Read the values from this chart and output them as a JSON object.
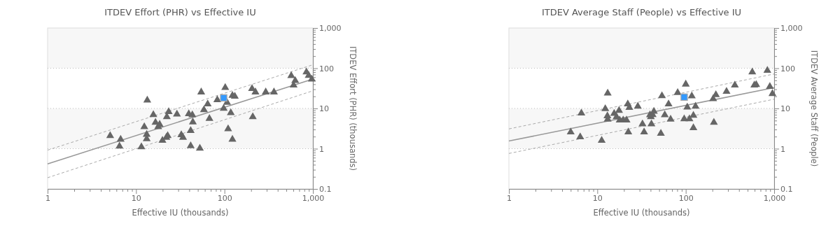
{
  "chart_data": [
    {
      "type": "scatter",
      "title": "ITDEV Effort (PHR) vs Effective IU",
      "xlabel": "Effective IU (thousands)",
      "ylabel": "ITDEV Effort (PHR) (thousands)",
      "log": "xy",
      "grid": "y",
      "xlim": [
        1,
        1000
      ],
      "ylim": [
        0.1,
        1000
      ],
      "xticks": [
        1,
        {
          "value": 2,
          "label": null
        },
        {
          "value": 3,
          "label": null
        },
        {
          "value": 4,
          "label": null
        },
        {
          "value": 5,
          "label": null
        },
        {
          "value": 6,
          "label": null
        },
        {
          "value": 7,
          "label": null
        },
        {
          "value": 8,
          "label": null
        },
        {
          "value": 9,
          "label": null
        },
        10,
        {
          "value": 20,
          "label": null
        },
        {
          "value": 30,
          "label": null
        },
        {
          "value": 40,
          "label": null
        },
        {
          "value": 50,
          "label": null
        },
        {
          "value": 60,
          "label": null
        },
        {
          "value": 70,
          "label": null
        },
        {
          "value": 80,
          "label": null
        },
        {
          "value": 90,
          "label": null
        },
        100,
        {
          "value": 200,
          "label": null
        },
        {
          "value": 300,
          "label": null
        },
        {
          "value": 400,
          "label": null
        },
        {
          "value": 500,
          "label": null
        },
        {
          "value": 600,
          "label": null
        },
        {
          "value": 700,
          "label": null
        },
        {
          "value": 800,
          "label": null
        },
        {
          "value": 900,
          "label": null
        },
        {
          "value": 1000,
          "label": "1,000"
        }
      ],
      "yticks": [
        0.1,
        {
          "value": 0.2,
          "label": null
        },
        {
          "value": 0.3,
          "label": null
        },
        {
          "value": 0.4,
          "label": null
        },
        {
          "value": 0.5,
          "label": null
        },
        {
          "value": 0.6,
          "label": null
        },
        {
          "value": 0.7,
          "label": null
        },
        {
          "value": 0.8,
          "label": null
        },
        {
          "value": 0.9,
          "label": null
        },
        1,
        {
          "value": 2,
          "label": null
        },
        {
          "value": 3,
          "label": null
        },
        {
          "value": 4,
          "label": null
        },
        {
          "value": 5,
          "label": null
        },
        {
          "value": 6,
          "label": null
        },
        {
          "value": 7,
          "label": null
        },
        {
          "value": 8,
          "label": null
        },
        {
          "value": 9,
          "label": null
        },
        10,
        {
          "value": 20,
          "label": null
        },
        {
          "value": 30,
          "label": null
        },
        {
          "value": 40,
          "label": null
        },
        {
          "value": 50,
          "label": null
        },
        {
          "value": 60,
          "label": null
        },
        {
          "value": 70,
          "label": null
        },
        {
          "value": 80,
          "label": null
        },
        {
          "value": 90,
          "label": null
        },
        100,
        {
          "value": 200,
          "label": null
        },
        {
          "value": 300,
          "label": null
        },
        {
          "value": 400,
          "label": null
        },
        {
          "value": 500,
          "label": null
        },
        {
          "value": 600,
          "label": null
        },
        {
          "value": 700,
          "label": null
        },
        {
          "value": 800,
          "label": null
        },
        {
          "value": 900,
          "label": null
        },
        {
          "value": 1000,
          "label": "1,000"
        }
      ],
      "bands": [
        {
          "axis": "y",
          "from": 100,
          "to": 1000,
          "color": "#f7f7f7"
        },
        {
          "axis": "y",
          "from": 1,
          "to": 10,
          "color": "#f7f7f7"
        }
      ],
      "series": [
        {
          "type": "line",
          "color": "#aaaaaa",
          "line_style": "dashed",
          "marker": "none",
          "x": [
            1,
            1000
          ],
          "values": [
            0.92,
            122
          ]
        },
        {
          "type": "line",
          "color": "#aaaaaa",
          "line_style": "dashed",
          "marker": "none",
          "x": [
            1,
            1000
          ],
          "values": [
            0.19,
            27.5
          ]
        },
        {
          "type": "line",
          "color": "#999999",
          "line_style": "solid",
          "marker": "none",
          "x": [
            1,
            1000
          ],
          "values": [
            0.42,
            54
          ]
        },
        {
          "type": "scatter",
          "color": "#666666",
          "marker": "triangle",
          "x": [
            5.1,
            6.7,
            6.5,
            11.5,
            13.4,
            12.4,
            13.2,
            13.2,
            15.7,
            16.6,
            17.8,
            18.5,
            19.9,
            22,
            22.8,
            22.3,
            23.4,
            29,
            32.5,
            34,
            39.5,
            41.5,
            41.5,
            43.3,
            43.9,
            52.7,
            54.6,
            58.6,
            64.6,
            67.6,
            83,
            98,
            102,
            107,
            110,
            118,
            123,
            131,
            123,
            205,
            224,
            209,
            293,
            363,
            569,
            631,
            605,
            845,
            896,
            972
          ],
          "values": [
            2.1,
            1.7,
            1.15,
            1.1,
            16,
            3.5,
            2.25,
            1.75,
            7,
            4.5,
            3.5,
            4,
            1.6,
            1.9,
            2.1,
            6.2,
            8.3,
            7.2,
            2.2,
            1.9,
            7.3,
            1.17,
            2.8,
            6.9,
            4.6,
            1.02,
            25.5,
            9.2,
            12.8,
            5.6,
            16.3,
            10,
            33,
            14,
            3.1,
            7.8,
            21,
            20,
            1.7,
            31,
            25.5,
            6.2,
            25.5,
            25.5,
            65,
            49,
            38,
            80,
            66,
            53
          ]
        },
        {
          "type": "scatter",
          "color": "#3399ff",
          "marker": "square",
          "x": [
            98
          ],
          "values": [
            18.3
          ]
        }
      ]
    },
    {
      "type": "scatter",
      "title": "ITDEV Average Staff (People) vs Effective IU",
      "xlabel": "Effective IU (thousands)",
      "ylabel": "ITDEV Average Staff (People)",
      "log": "xy",
      "grid": "y",
      "xlim": [
        1,
        1000
      ],
      "ylim": [
        0.1,
        1000
      ],
      "xticks": [
        1,
        {
          "value": 2,
          "label": null
        },
        {
          "value": 3,
          "label": null
        },
        {
          "value": 4,
          "label": null
        },
        {
          "value": 5,
          "label": null
        },
        {
          "value": 6,
          "label": null
        },
        {
          "value": 7,
          "label": null
        },
        {
          "value": 8,
          "label": null
        },
        {
          "value": 9,
          "label": null
        },
        10,
        {
          "value": 20,
          "label": null
        },
        {
          "value": 30,
          "label": null
        },
        {
          "value": 40,
          "label": null
        },
        {
          "value": 50,
          "label": null
        },
        {
          "value": 60,
          "label": null
        },
        {
          "value": 70,
          "label": null
        },
        {
          "value": 80,
          "label": null
        },
        {
          "value": 90,
          "label": null
        },
        100,
        {
          "value": 200,
          "label": null
        },
        {
          "value": 300,
          "label": null
        },
        {
          "value": 400,
          "label": null
        },
        {
          "value": 500,
          "label": null
        },
        {
          "value": 600,
          "label": null
        },
        {
          "value": 700,
          "label": null
        },
        {
          "value": 800,
          "label": null
        },
        {
          "value": 900,
          "label": null
        },
        {
          "value": 1000,
          "label": "1,000"
        }
      ],
      "yticks": [
        0.1,
        {
          "value": 0.2,
          "label": null
        },
        {
          "value": 0.3,
          "label": null
        },
        {
          "value": 0.4,
          "label": null
        },
        {
          "value": 0.5,
          "label": null
        },
        {
          "value": 0.6,
          "label": null
        },
        {
          "value": 0.7,
          "label": null
        },
        {
          "value": 0.8,
          "label": null
        },
        {
          "value": 0.9,
          "label": null
        },
        1,
        {
          "value": 2,
          "label": null
        },
        {
          "value": 3,
          "label": null
        },
        {
          "value": 4,
          "label": null
        },
        {
          "value": 5,
          "label": null
        },
        {
          "value": 6,
          "label": null
        },
        {
          "value": 7,
          "label": null
        },
        {
          "value": 8,
          "label": null
        },
        {
          "value": 9,
          "label": null
        },
        10,
        {
          "value": 20,
          "label": null
        },
        {
          "value": 30,
          "label": null
        },
        {
          "value": 40,
          "label": null
        },
        {
          "value": 50,
          "label": null
        },
        {
          "value": 60,
          "label": null
        },
        {
          "value": 70,
          "label": null
        },
        {
          "value": 80,
          "label": null
        },
        {
          "value": 90,
          "label": null
        },
        100,
        {
          "value": 200,
          "label": null
        },
        {
          "value": 300,
          "label": null
        },
        {
          "value": 400,
          "label": null
        },
        {
          "value": 500,
          "label": null
        },
        {
          "value": 600,
          "label": null
        },
        {
          "value": 700,
          "label": null
        },
        {
          "value": 800,
          "label": null
        },
        {
          "value": 900,
          "label": null
        },
        {
          "value": 1000,
          "label": "1,000"
        }
      ],
      "bands": [
        {
          "axis": "y",
          "from": 100,
          "to": 1000,
          "color": "#f7f7f7"
        },
        {
          "axis": "y",
          "from": 1,
          "to": 10,
          "color": "#f7f7f7"
        }
      ],
      "series": [
        {
          "type": "line",
          "color": "#aaaaaa",
          "line_style": "dashed",
          "marker": "none",
          "x": [
            1,
            1000
          ],
          "values": [
            3.1,
            72
          ]
        },
        {
          "type": "line",
          "color": "#aaaaaa",
          "line_style": "dashed",
          "marker": "none",
          "x": [
            1,
            1000
          ],
          "values": [
            0.76,
            17
          ]
        },
        {
          "type": "line",
          "color": "#999999",
          "line_style": "solid",
          "marker": "none",
          "x": [
            1,
            1000
          ],
          "values": [
            1.55,
            33
          ]
        },
        {
          "type": "scatter",
          "color": "#666666",
          "marker": "triangle",
          "x": [
            5.0,
            6.4,
            6.6,
            11.2,
            12.3,
            13.1,
            13,
            13.1,
            15.5,
            16.5,
            17.6,
            17.9,
            19.6,
            21.4,
            22.1,
            23,
            22.4,
            28.7,
            32.4,
            33.8,
            39.4,
            40.3,
            40.9,
            42.2,
            43.6,
            52.3,
            53.8,
            57.9,
            63.9,
            67.4,
            81,
            96,
            100,
            104,
            110,
            117,
            122,
            122,
            129,
            204,
            219,
            208,
            289,
            359,
            565,
            596,
            626,
            837,
            893,
            955
          ],
          "values": [
            2.6,
            1.95,
            7.6,
            1.6,
            9.8,
            24,
            6.5,
            5.4,
            7.5,
            6.2,
            8.9,
            5.1,
            5.1,
            5.1,
            12.9,
            10.5,
            2.6,
            11.3,
            4.1,
            2.6,
            6.9,
            6.2,
            4.1,
            7,
            8.4,
            2.4,
            20.5,
            6.9,
            12.9,
            5.4,
            24.6,
            5.5,
            40,
            10.7,
            5.5,
            20.3,
            6.7,
            3.3,
            11.3,
            17.3,
            21.9,
            4.5,
            26.4,
            38,
            80,
            38,
            39,
            88,
            35,
            23.3
          ]
        },
        {
          "type": "scatter",
          "color": "#3399ff",
          "marker": "square",
          "x": [
            96
          ],
          "values": [
            19.1
          ]
        }
      ]
    }
  ]
}
